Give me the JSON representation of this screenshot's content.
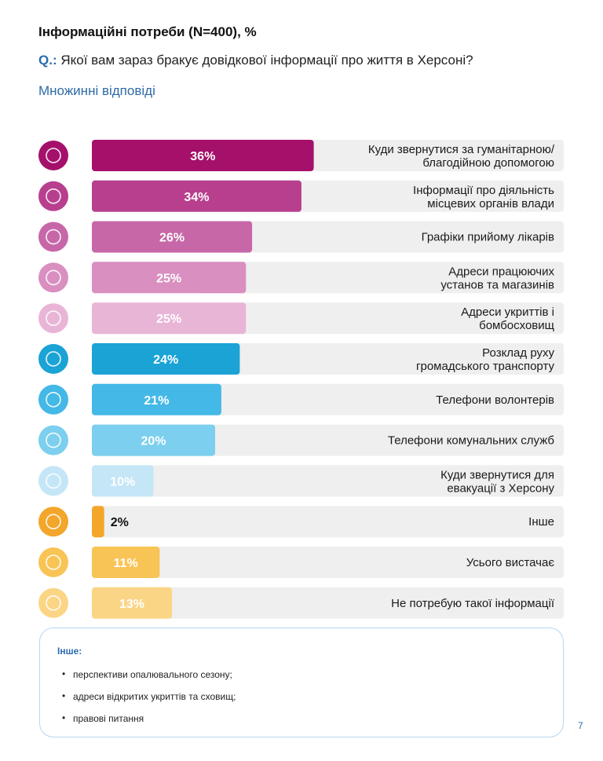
{
  "header": {
    "title": "Інформаційні потреби (N=400), %",
    "question_prefix": "Q.:",
    "question": "Якої вам зараз бракує довідкової інформації про життя в Херсоні?",
    "subtitle": "Множинні відповіді"
  },
  "chart_data": {
    "type": "bar",
    "orientation": "horizontal",
    "value_unit": "%",
    "xlim": [
      0,
      100
    ],
    "categories": [
      "Куди звернутися за гуманітарною/\nблагодійною допомогою",
      "Інформації про діяльність\nмісцевих органів влади",
      "Графіки прийому лікарів",
      "Адреси працюючих\nустанов та магазинів",
      "Адреси укриттів і\nбомбосховищ",
      "Розклад руху\nгромадського транспорту",
      "Телефони волонтерів",
      "Телефони комунальних служб",
      "Куди звернутися для\nевакуації з Херсону",
      "Інше",
      "Усього вистачає",
      "Не потребую такої інформації"
    ],
    "values": [
      36,
      34,
      26,
      25,
      25,
      24,
      21,
      20,
      10,
      2,
      11,
      13
    ],
    "value_labels": [
      "36%",
      "34%",
      "26%",
      "25%",
      "25%",
      "24%",
      "21%",
      "20%",
      "10%",
      "2%",
      "11%",
      "13%"
    ],
    "colors": [
      "#a5106b",
      "#b83f8e",
      "#c767a8",
      "#d98fc0",
      "#e9b5d7",
      "#1ba3d6",
      "#44b8e6",
      "#7ccfee",
      "#c5e6f7",
      "#f3a62a",
      "#f9c456",
      "#fbd586"
    ],
    "icons": [
      "humanitarian-aid-icon",
      "government-shield-icon",
      "doctor-icon",
      "store-icon",
      "shelter-house-icon",
      "bus-icon",
      "volunteer-hand-icon",
      "phone-icon",
      "evacuation-people-icon",
      "chat-bubbles-icon",
      "checklist-icon",
      "question-chat-icon"
    ]
  },
  "note": {
    "title": "Інше:",
    "items": [
      "перспективи опалювального сезону;",
      "адреси відкритих укриттів та сховищ;",
      "правові питання"
    ]
  },
  "page_number": "7"
}
